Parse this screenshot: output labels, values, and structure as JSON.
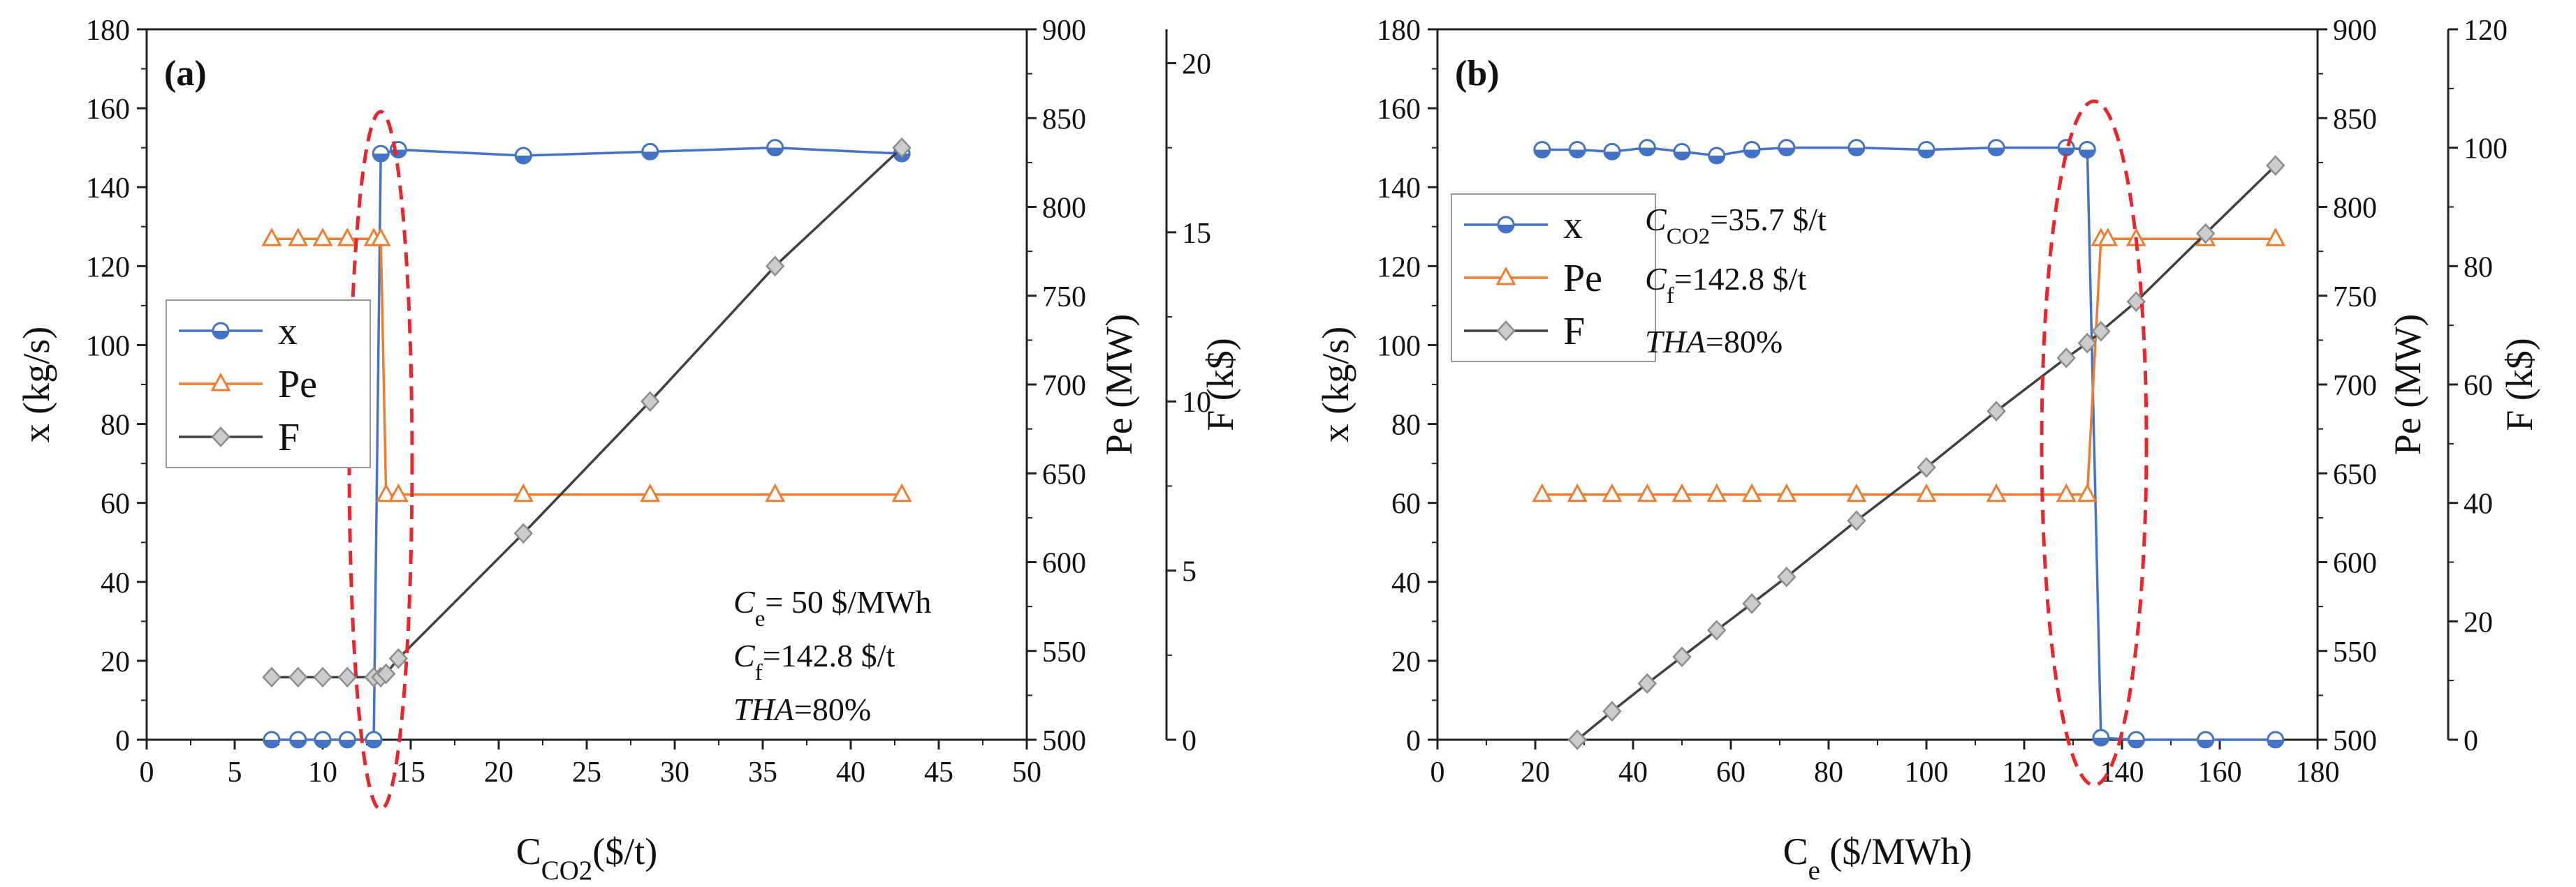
{
  "chart_data": [
    {
      "type": "line",
      "panel_label": "(a)",
      "xlabel": "C",
      "xlabel_sub": "CO2",
      "xlabel_unit": "($/t)",
      "ylabel": "x (kg/s)",
      "y2label": "Pe (MW)",
      "y3label": "F (k$)",
      "xlim": [
        0,
        50
      ],
      "ylim": [
        0,
        180
      ],
      "y2lim": [
        500,
        900
      ],
      "y3lim": [
        0,
        21
      ],
      "xticks": [
        0,
        5,
        10,
        15,
        20,
        25,
        30,
        35,
        40,
        45,
        50
      ],
      "yticks": [
        0,
        20,
        40,
        60,
        80,
        100,
        120,
        140,
        160,
        180
      ],
      "y2ticks": [
        500,
        550,
        600,
        650,
        700,
        750,
        800,
        850,
        900
      ],
      "y3ticks": [
        0,
        5,
        10,
        15,
        20
      ],
      "legend": [
        "x",
        "Pe",
        "F"
      ],
      "legend_position": "middle-left",
      "series": [
        {
          "name": "x",
          "axis": "y",
          "color": "#4472c4",
          "marker": "circle",
          "x": [
            7.1,
            8.6,
            10,
            11.4,
            12.9,
            13.3,
            14.3,
            21.4,
            28.6,
            35.7,
            42.9
          ],
          "y": [
            0,
            0,
            0,
            0,
            0,
            148.5,
            149.5,
            148,
            149,
            150,
            148.5
          ]
        },
        {
          "name": "Pe",
          "axis": "y2",
          "color": "#ed7d31",
          "marker": "triangle",
          "x": [
            7.1,
            8.6,
            10,
            11.4,
            12.9,
            13.3,
            13.6,
            14.3,
            21.4,
            28.6,
            35.7,
            42.9
          ],
          "y": [
            782,
            782,
            782,
            782,
            782,
            782,
            638,
            638,
            638,
            638,
            638,
            638
          ]
        },
        {
          "name": "F",
          "axis": "y3",
          "color": "#404040",
          "marker": "diamond",
          "x": [
            7.1,
            8.6,
            10,
            11.4,
            12.9,
            13.3,
            13.6,
            14.3,
            21.4,
            28.6,
            35.7,
            42.9
          ],
          "y": [
            1.85,
            1.85,
            1.85,
            1.85,
            1.85,
            1.85,
            1.95,
            2.4,
            6.1,
            10,
            14,
            17.5
          ]
        }
      ],
      "annotations": {
        "ce": {
          "sym": "C",
          "sub": "e",
          "rest": "= 50 $/MWh"
        },
        "cf": {
          "sym": "C",
          "sub": "f",
          "rest": "=142.8 $/t"
        },
        "tha": {
          "sym": "THA",
          "rest": "=80%"
        }
      }
    },
    {
      "type": "line",
      "panel_label": "(b)",
      "xlabel": "C",
      "xlabel_sub": "e",
      "xlabel_unit": " ($/MWh)",
      "ylabel": "x (kg/s)",
      "y2label": "Pe (MW)",
      "y3label": "F (k$)",
      "xlim": [
        0,
        180
      ],
      "ylim": [
        0,
        180
      ],
      "y2lim": [
        500,
        900
      ],
      "y3lim": [
        0,
        120
      ],
      "xticks": [
        0,
        20,
        40,
        60,
        80,
        100,
        120,
        140,
        160,
        180
      ],
      "yticks": [
        0,
        20,
        40,
        60,
        80,
        100,
        120,
        140,
        160,
        180
      ],
      "y2ticks": [
        500,
        550,
        600,
        650,
        700,
        750,
        800,
        850,
        900
      ],
      "y3ticks": [
        0,
        20,
        40,
        60,
        80,
        100,
        120
      ],
      "legend": [
        "x",
        "Pe",
        "F"
      ],
      "legend_position": "top-left",
      "series": [
        {
          "name": "x",
          "axis": "y",
          "color": "#4472c4",
          "marker": "circle",
          "x": [
            21.4,
            28.6,
            35.7,
            42.9,
            50,
            57.1,
            64.3,
            71.4,
            85.7,
            100,
            114.3,
            128.6,
            132.9,
            135.7,
            142.9,
            157.1,
            171.4
          ],
          "y": [
            149.5,
            149.5,
            149,
            150,
            149,
            148,
            149.5,
            150,
            150,
            149.5,
            150,
            150,
            149.5,
            0.5,
            0,
            0,
            0
          ]
        },
        {
          "name": "Pe",
          "axis": "y2",
          "color": "#ed7d31",
          "marker": "triangle",
          "x": [
            21.4,
            28.6,
            35.7,
            42.9,
            50,
            57.1,
            64.3,
            71.4,
            85.7,
            100,
            114.3,
            128.6,
            132.9,
            135.7,
            137.1,
            142.9,
            157.1,
            171.4
          ],
          "y": [
            638,
            638,
            638,
            638,
            638,
            638,
            638,
            638,
            638,
            638,
            638,
            638,
            638,
            782,
            782,
            782,
            782,
            782
          ]
        },
        {
          "name": "F",
          "axis": "y3",
          "color": "#404040",
          "marker": "diamond",
          "x": [
            28.6,
            35.7,
            42.9,
            50,
            57.1,
            64.3,
            71.4,
            85.7,
            100,
            114.3,
            128.6,
            132.9,
            135.7,
            142.9,
            157.1,
            171.4
          ],
          "y": [
            0,
            4.8,
            9.5,
            14,
            18.5,
            23,
            27.5,
            37,
            46,
            55.5,
            64.5,
            67,
            69,
            74,
            85.5,
            97
          ]
        }
      ],
      "annotations": {
        "cco2": {
          "sym": "C",
          "sub": "CO2",
          "rest": "=35.7 $/t"
        },
        "cf": {
          "sym": "C",
          "sub": "f",
          "rest": "=142.8 $/t"
        },
        "tha": {
          "sym": "THA",
          "rest": "=80%"
        }
      }
    }
  ]
}
